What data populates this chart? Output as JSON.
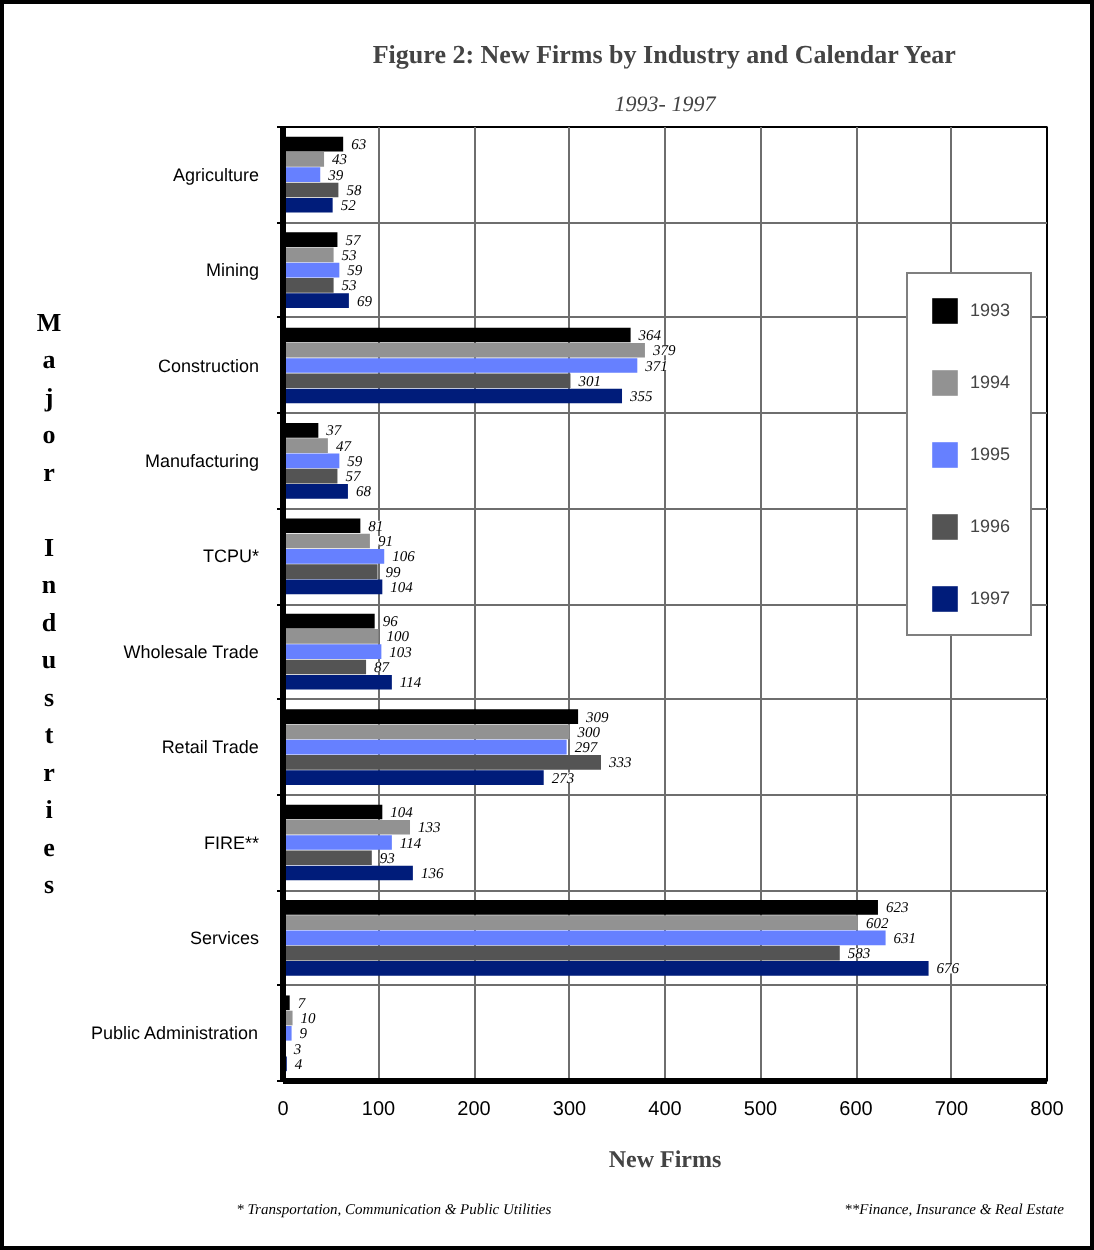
{
  "chart_data": {
    "type": "bar",
    "orientation": "horizontal",
    "title": "Figure 2: New Firms by Industry and Calendar Year",
    "subtitle": "1993- 1997",
    "xlabel": "New Firms",
    "ylabel": "Major Industries",
    "categories": [
      "Agriculture",
      "Mining",
      "Construction",
      "Manufacturing",
      "TCPU*",
      "Wholesale Trade",
      "Retail Trade",
      "FIRE**",
      "Services",
      "Public Administration"
    ],
    "series": [
      {
        "name": "1993",
        "color": "#000000",
        "values": [
          63,
          57,
          364,
          37,
          81,
          96,
          309,
          104,
          623,
          7
        ]
      },
      {
        "name": "1994",
        "color": "#929292",
        "values": [
          43,
          53,
          379,
          47,
          91,
          100,
          300,
          133,
          602,
          10
        ]
      },
      {
        "name": "1995",
        "color": "#6680ff",
        "values": [
          39,
          59,
          371,
          59,
          106,
          103,
          297,
          114,
          631,
          9
        ]
      },
      {
        "name": "1996",
        "color": "#545454",
        "values": [
          58,
          53,
          301,
          57,
          99,
          87,
          333,
          93,
          583,
          3
        ]
      },
      {
        "name": "1997",
        "color": "#001c7a",
        "values": [
          52,
          69,
          355,
          68,
          104,
          114,
          273,
          136,
          676,
          4
        ]
      }
    ],
    "xlim": [
      0,
      800
    ],
    "xticks": [
      0,
      100,
      200,
      300,
      400,
      500,
      600,
      700,
      800
    ],
    "grid": true,
    "legend": "right",
    "data_labels": true,
    "annotations": [
      "* Transportation, Communication & Public Utilities",
      "**Finance, Insurance & Real Estate"
    ]
  }
}
